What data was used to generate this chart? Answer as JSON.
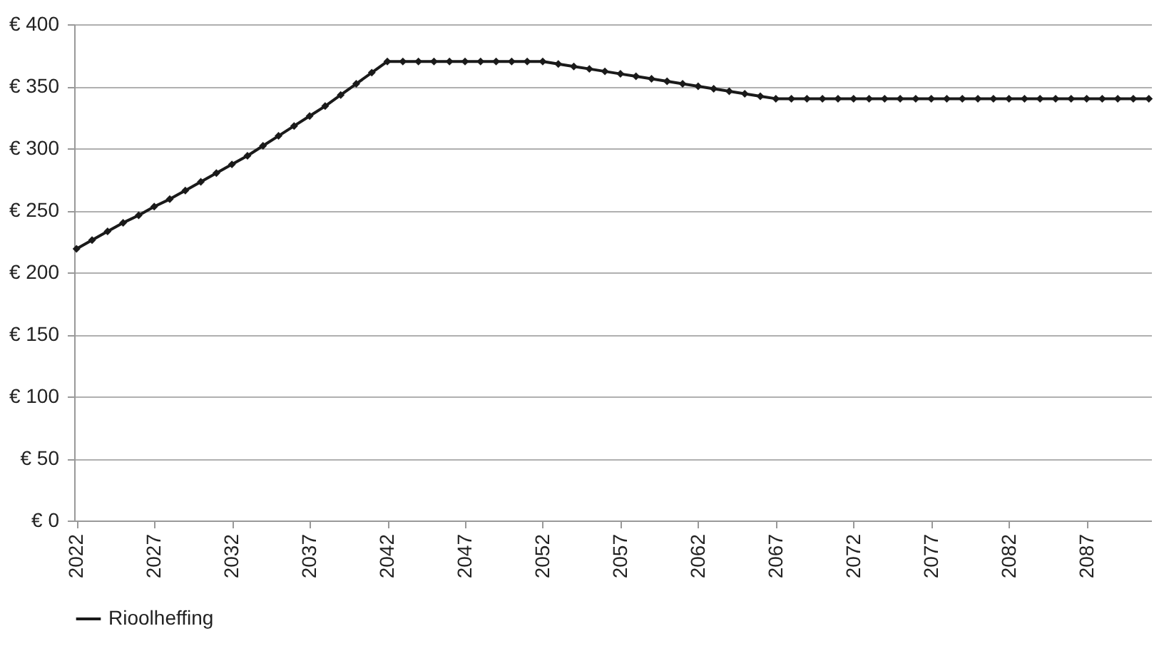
{
  "chart_data": {
    "type": "line",
    "categories": [
      "2022",
      null,
      null,
      null,
      null,
      "2027",
      null,
      null,
      null,
      null,
      "2032",
      null,
      null,
      null,
      null,
      "2037",
      null,
      null,
      null,
      null,
      "2042",
      null,
      null,
      null,
      null,
      "2047",
      null,
      null,
      null,
      null,
      "2052",
      null,
      null,
      null,
      null,
      "2057",
      null,
      null,
      null,
      null,
      "2062",
      null,
      null,
      null,
      null,
      "2067",
      null,
      null,
      null,
      null,
      "2072",
      null,
      null,
      null,
      null,
      "2077",
      null,
      null,
      null,
      null,
      "2082",
      null,
      null,
      null,
      null,
      "2087",
      null,
      null,
      null,
      null
    ],
    "series": [
      {
        "name": "Rioolheffing",
        "color": "#1a1a1a",
        "values": [
          219,
          226,
          233,
          240,
          246,
          253,
          259,
          266,
          273,
          280,
          287,
          294,
          302,
          310,
          318,
          326,
          334,
          343,
          352,
          361,
          370,
          370,
          370,
          370,
          370,
          370,
          370,
          370,
          370,
          370,
          370,
          368,
          366,
          364,
          362,
          360,
          358,
          356,
          354,
          352,
          350,
          348,
          346,
          344,
          342,
          340,
          340,
          340,
          340,
          340,
          340,
          340,
          340,
          340,
          340,
          340,
          340,
          340,
          340,
          340,
          340,
          340,
          340,
          340,
          340,
          340,
          340,
          340,
          340,
          340
        ]
      }
    ],
    "ylim": [
      0,
      400
    ],
    "yticks": [
      {
        "value": 0,
        "label": "€ 0"
      },
      {
        "value": 50,
        "label": "€ 50"
      },
      {
        "value": 100,
        "label": "€ 100"
      },
      {
        "value": 150,
        "label": "€ 150"
      },
      {
        "value": 200,
        "label": "€ 200"
      },
      {
        "value": 250,
        "label": "€ 250"
      },
      {
        "value": 300,
        "label": "€ 300"
      },
      {
        "value": 350,
        "label": "€ 350"
      },
      {
        "value": 400,
        "label": "€ 400"
      }
    ],
    "grid": "y",
    "legend": "bottom",
    "marker": "diamond",
    "line_style": "solid"
  }
}
